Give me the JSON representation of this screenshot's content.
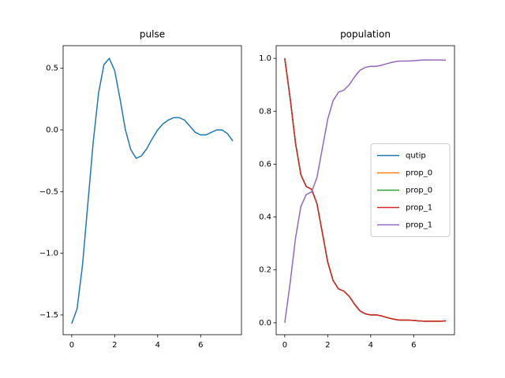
{
  "chart_data": [
    {
      "type": "line",
      "title": "pulse",
      "x": [
        0,
        0.25,
        0.5,
        0.75,
        1,
        1.25,
        1.5,
        1.75,
        2,
        2.25,
        2.5,
        2.75,
        3,
        3.25,
        3.5,
        3.75,
        4,
        4.25,
        4.5,
        4.75,
        5,
        5.25,
        5.5,
        5.75,
        6,
        6.25,
        6.5,
        6.75,
        7,
        7.25,
        7.5
      ],
      "series": [
        {
          "color": "#1f77b4",
          "values": [
            -1.57,
            -1.45,
            -1.1,
            -0.6,
            -0.1,
            0.3,
            0.53,
            0.58,
            0.48,
            0.25,
            0.0,
            -0.16,
            -0.23,
            -0.21,
            -0.15,
            -0.07,
            0.0,
            0.05,
            0.08,
            0.1,
            0.1,
            0.08,
            0.03,
            -0.02,
            -0.04,
            -0.04,
            -0.02,
            0.0,
            0.0,
            -0.03,
            -0.09
          ]
        }
      ],
      "xlim": [
        -0.4,
        7.9
      ],
      "xticks": [
        0,
        2,
        4,
        6
      ],
      "ylim": [
        -1.66,
        0.683
      ],
      "yticks": [
        {
          "value": -1.5,
          "label": "−1.5"
        },
        {
          "value": -1,
          "label": "−1.0"
        },
        {
          "value": -0.5,
          "label": "−0.5"
        },
        {
          "value": 0,
          "label": "0.0"
        },
        0.5
      ]
    },
    {
      "type": "line",
      "title": "population",
      "x": [
        0,
        0.25,
        0.5,
        0.75,
        1,
        1.25,
        1.5,
        1.75,
        2,
        2.25,
        2.5,
        2.75,
        3,
        3.25,
        3.5,
        3.75,
        4,
        4.25,
        4.5,
        4.75,
        5,
        5.25,
        5.5,
        5.75,
        6,
        6.25,
        6.5,
        6.75,
        7,
        7.25,
        7.5
      ],
      "series": [
        {
          "name": "qutip",
          "color": "#1f77b4",
          "values": [
            1.0,
            0.85,
            0.68,
            0.56,
            0.515,
            0.505,
            0.45,
            0.34,
            0.23,
            0.16,
            0.128,
            0.12,
            0.1,
            0.07,
            0.045,
            0.034,
            0.03,
            0.03,
            0.026,
            0.02,
            0.015,
            0.011,
            0.01,
            0.01,
            0.009,
            0.007,
            0.006,
            0.006,
            0.006,
            0.006,
            0.007
          ]
        },
        {
          "name": "prop_0",
          "color": "#ff7f0e",
          "values": [
            1.0,
            0.85,
            0.68,
            0.56,
            0.515,
            0.505,
            0.45,
            0.34,
            0.23,
            0.16,
            0.128,
            0.12,
            0.1,
            0.07,
            0.045,
            0.034,
            0.03,
            0.03,
            0.026,
            0.02,
            0.015,
            0.011,
            0.01,
            0.01,
            0.009,
            0.007,
            0.006,
            0.006,
            0.006,
            0.006,
            0.007
          ]
        },
        {
          "name": "prop_0",
          "color": "#2ca02c",
          "values": [
            1.0,
            0.85,
            0.68,
            0.56,
            0.515,
            0.505,
            0.45,
            0.34,
            0.23,
            0.16,
            0.128,
            0.12,
            0.1,
            0.07,
            0.045,
            0.034,
            0.03,
            0.03,
            0.026,
            0.02,
            0.015,
            0.011,
            0.01,
            0.01,
            0.009,
            0.007,
            0.006,
            0.006,
            0.006,
            0.006,
            0.007
          ]
        },
        {
          "name": "prop_1",
          "color": "#d62728",
          "values": [
            1.0,
            0.85,
            0.68,
            0.56,
            0.515,
            0.505,
            0.45,
            0.34,
            0.23,
            0.16,
            0.128,
            0.12,
            0.1,
            0.07,
            0.045,
            0.034,
            0.03,
            0.03,
            0.026,
            0.02,
            0.015,
            0.011,
            0.01,
            0.01,
            0.009,
            0.007,
            0.006,
            0.006,
            0.006,
            0.006,
            0.007
          ]
        },
        {
          "name": "prop_1",
          "color": "#9467bd",
          "values": [
            0.0,
            0.15,
            0.32,
            0.44,
            0.485,
            0.495,
            0.55,
            0.66,
            0.77,
            0.84,
            0.872,
            0.88,
            0.9,
            0.93,
            0.955,
            0.966,
            0.97,
            0.97,
            0.974,
            0.98,
            0.985,
            0.989,
            0.99,
            0.99,
            0.991,
            0.993,
            0.994,
            0.994,
            0.994,
            0.994,
            0.993
          ]
        }
      ],
      "xlim": [
        -0.4,
        7.9
      ],
      "xticks": [
        0,
        2,
        4,
        6
      ],
      "ylim": [
        -0.045,
        1.048
      ],
      "yticks": [
        {
          "value": 0,
          "label": "0.0"
        },
        0.2,
        0.4,
        0.6,
        0.8,
        {
          "value": 1,
          "label": "1.0"
        }
      ],
      "legend": "center right"
    }
  ]
}
